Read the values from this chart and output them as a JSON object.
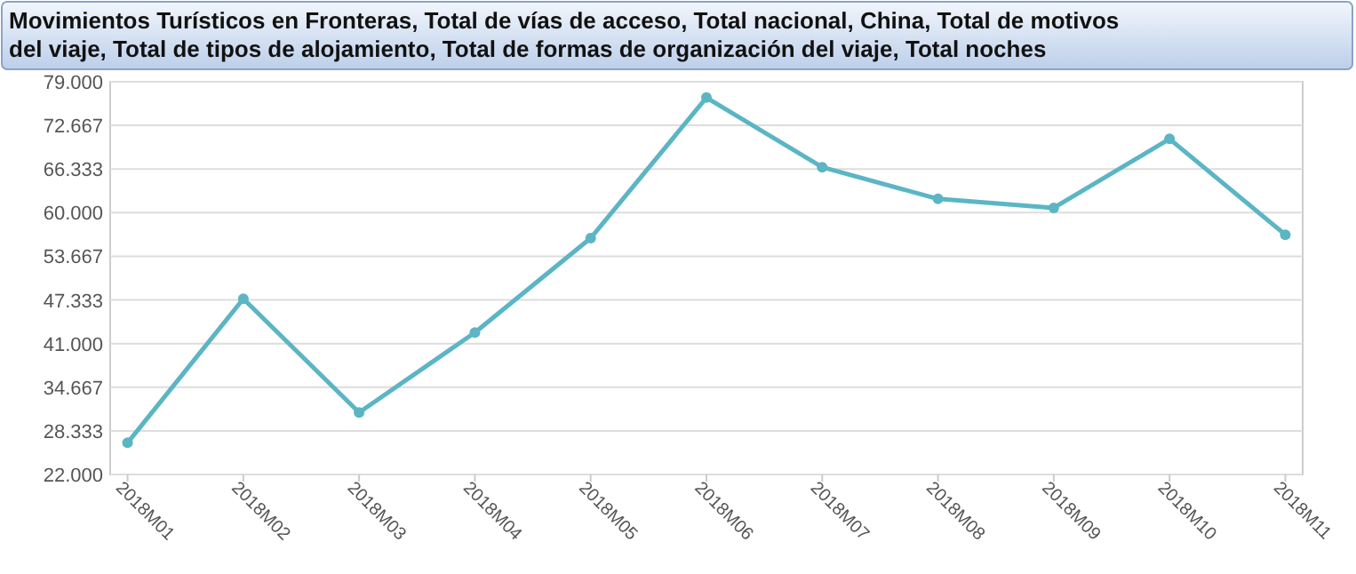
{
  "chart_data": {
    "type": "line",
    "title": "Movimientos Turísticos en Fronteras, Total de vías de acceso, Total nacional, China, Total de motivos del viaje, Total de tipos de alojamiento, Total de formas de organización del viaje, Total noches",
    "categories": [
      "2018M01",
      "2018M02",
      "2018M03",
      "2018M04",
      "2018M05",
      "2018M06",
      "2018M07",
      "2018M08",
      "2018M09",
      "2018M10",
      "2018M11"
    ],
    "series": [
      {
        "color": "#5bb5c4",
        "values": [
          26600,
          47500,
          31000,
          42600,
          56300,
          76700,
          66600,
          62000,
          60700,
          70700,
          56800
        ]
      }
    ],
    "ylim": [
      22000,
      79000
    ],
    "yticks": [
      {
        "value": 22000,
        "label": "22.000"
      },
      {
        "value": 28333,
        "label": "28.333"
      },
      {
        "value": 34667,
        "label": "34.667"
      },
      {
        "value": 41000,
        "label": "41.000"
      },
      {
        "value": 47333,
        "label": "47.333"
      },
      {
        "value": 53667,
        "label": "53.667"
      },
      {
        "value": 60000,
        "label": "60.000"
      },
      {
        "value": 66333,
        "label": "66.333"
      },
      {
        "value": 72667,
        "label": "72.667"
      },
      {
        "value": 79000,
        "label": "79.000"
      }
    ],
    "grid": "y",
    "marker": "circle",
    "line_style": "solid"
  }
}
